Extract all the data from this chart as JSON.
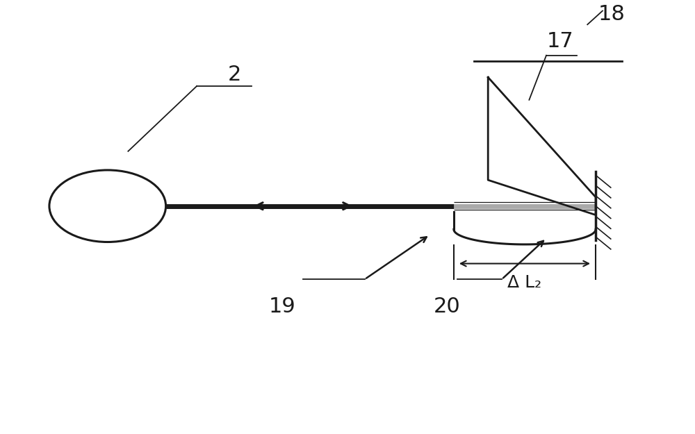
{
  "bg_color": "#ffffff",
  "line_color": "#1a1a1a",
  "gray_color": "#aaaaaa",
  "label_2": "2",
  "label_17": "17",
  "label_18": "18",
  "label_19": "19",
  "label_20": "20",
  "label_dL": "Δ L₂",
  "figsize": [
    10.0,
    6.25
  ],
  "dpi": 100
}
